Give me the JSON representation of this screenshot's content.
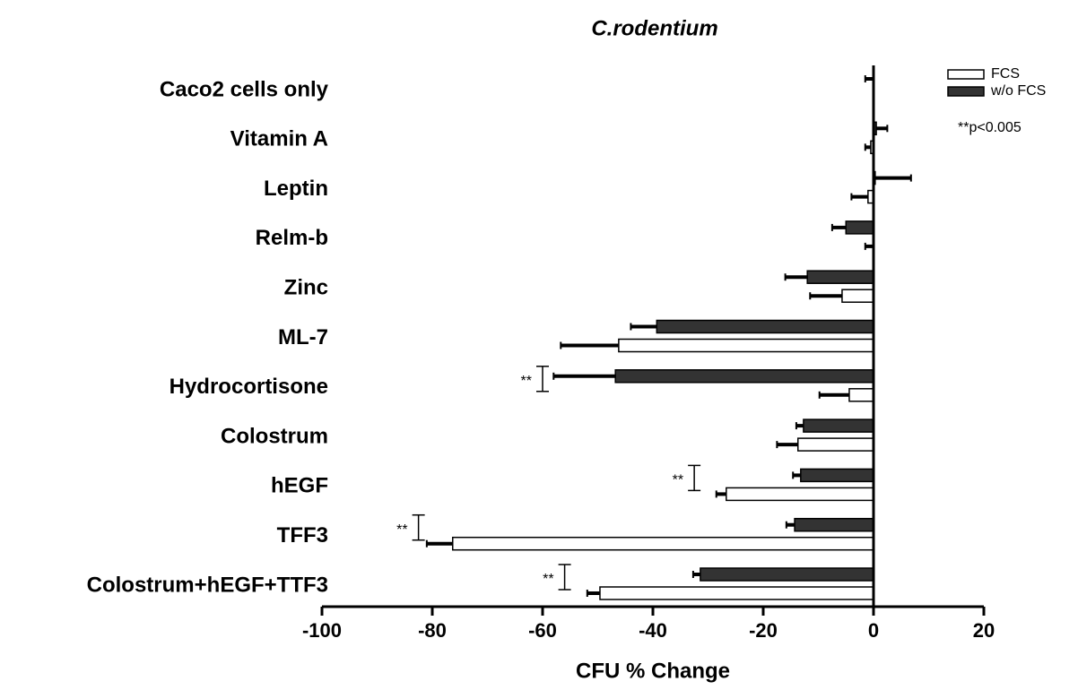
{
  "chart_data": {
    "type": "hbar",
    "title": "C.rodentium",
    "xlabel": "CFU % Change",
    "categories": [
      "Caco2 cells only",
      "Vitamin A",
      "Leptin",
      "Relm-b",
      "Zinc",
      "ML-7",
      "Hydrocortisone",
      "Colostrum",
      "hEGF",
      "TFF3",
      "Colostrum+hEGF+TTF3"
    ],
    "series": [
      {
        "name": "w/o FCS",
        "color": "#333333",
        "values": [
          0,
          0.5,
          0.3,
          -5,
          -12,
          -39.3,
          -46.8,
          -12.7,
          -13.2,
          -14.3,
          -31.4
        ],
        "errors": [
          1.5,
          2,
          6.5,
          2.5,
          4,
          4.7,
          11.2,
          1.3,
          1.4,
          1.5,
          1.3
        ]
      },
      {
        "name": "FCS",
        "color": "#ffffff",
        "values": [
          0,
          -0.5,
          -1,
          0,
          -5.7,
          -46.2,
          -4.4,
          -13.7,
          -26.7,
          -76.3,
          -49.6
        ],
        "errors": [
          0,
          1,
          3,
          1.5,
          5.8,
          10.5,
          5.4,
          3.8,
          1.8,
          4.7,
          2.3
        ]
      }
    ],
    "xlim": [
      -100,
      20
    ],
    "xticks": [
      -100,
      -80,
      -60,
      -40,
      -20,
      0,
      20
    ],
    "legend_note": "**p<0.005",
    "annotations": [
      {
        "text": "**",
        "category": "Hydrocortisone",
        "x": -60
      },
      {
        "text": "**",
        "category": "hEGF",
        "x": -32.5
      },
      {
        "text": "**",
        "category": "TFF3",
        "x": -82.5
      },
      {
        "text": "**",
        "category": "Colostrum+hEGF+TTF3",
        "x": -56
      }
    ]
  }
}
